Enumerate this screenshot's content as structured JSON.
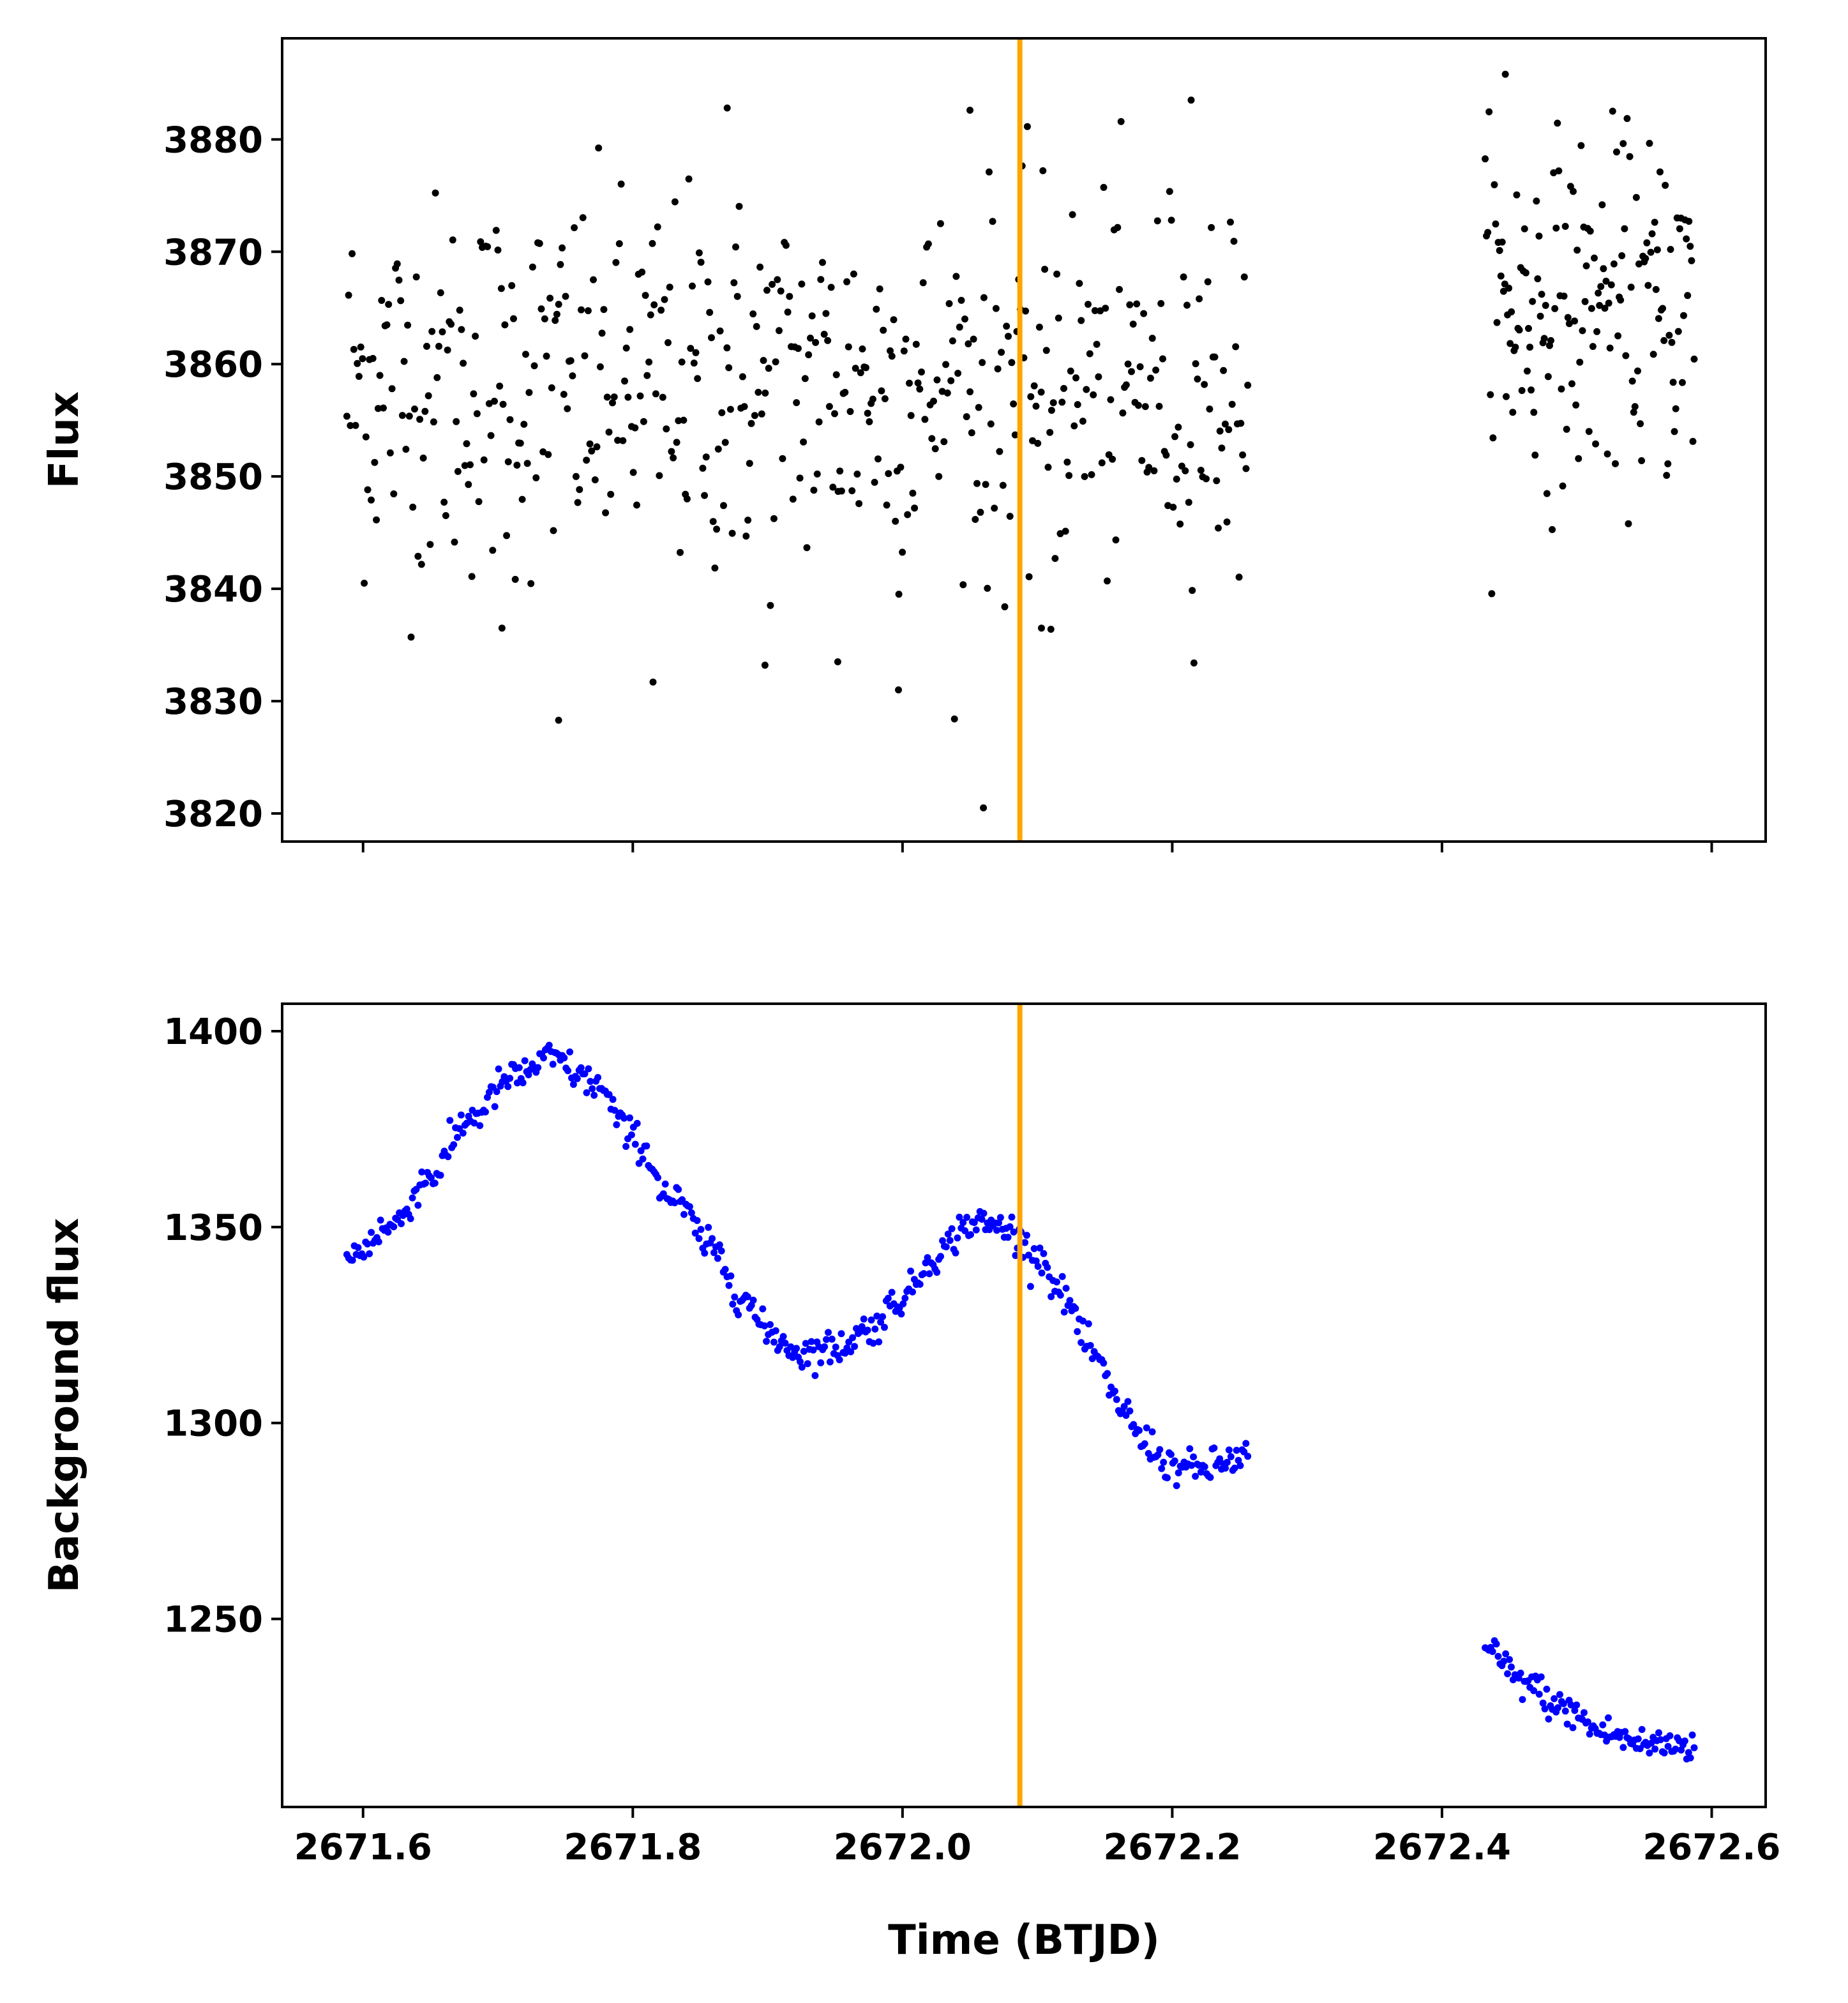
{
  "chart_data": [
    {
      "type": "scatter",
      "ylabel": "Flux",
      "xlabel": "",
      "xlim": [
        2671.54,
        2672.64
      ],
      "ylim": [
        3817.5,
        3889
      ],
      "x_ticks": [
        2671.6,
        2671.8,
        2672.0,
        2672.2,
        2672.4,
        2672.6
      ],
      "x_tick_labels_visible": false,
      "y_ticks": [
        3820,
        3830,
        3840,
        3850,
        3860,
        3870,
        3880
      ],
      "y_tick_labels": [
        "3820",
        "3830",
        "3840",
        "3850",
        "3860",
        "3870",
        "3880"
      ],
      "marker_color": "#000000",
      "vline": {
        "x": 2672.087,
        "color": "#ffa500"
      },
      "segments": [
        {
          "x_start": 2671.588,
          "x_end": 2672.256,
          "count": 520,
          "mean": 3858,
          "std": 8.5
        },
        {
          "x_start": 2672.432,
          "x_end": 2672.587,
          "count": 160,
          "mean": 3865,
          "std": 7.5
        }
      ],
      "notable_points": [
        {
          "x": 2672.06,
          "y": 3820.5
        },
        {
          "x": 2671.745,
          "y": 3828.3
        },
        {
          "x": 2672.447,
          "y": 3885.8
        },
        {
          "x": 2672.214,
          "y": 3883.5
        },
        {
          "x": 2671.87,
          "y": 3882.8
        },
        {
          "x": 2672.05,
          "y": 3882.6
        },
        {
          "x": 2671.815,
          "y": 3831.7
        },
        {
          "x": 2671.997,
          "y": 3831.0
        },
        {
          "x": 2671.898,
          "y": 3833.2
        },
        {
          "x": 2671.952,
          "y": 3833.5
        },
        {
          "x": 2671.703,
          "y": 3836.5
        },
        {
          "x": 2672.103,
          "y": 3836.5
        },
        {
          "x": 2672.11,
          "y": 3836.4
        }
      ],
      "grid": false
    },
    {
      "type": "scatter",
      "ylabel": "Background flux",
      "xlabel": "Time (BTJD)",
      "xlim": [
        2671.54,
        2672.64
      ],
      "ylim": [
        1202,
        1407
      ],
      "x_ticks": [
        2671.6,
        2671.8,
        2672.0,
        2672.2,
        2672.4,
        2672.6
      ],
      "x_tick_labels": [
        "2671.6",
        "2671.8",
        "2672.0",
        "2672.2",
        "2672.4",
        "2672.6"
      ],
      "y_ticks": [
        1250,
        1300,
        1350,
        1400
      ],
      "y_tick_labels": [
        "1250",
        "1300",
        "1350",
        "1400"
      ],
      "marker_color": "#0000ff",
      "vline": {
        "x": 2672.087,
        "color": "#ffa500"
      },
      "curve": [
        {
          "x": 2671.588,
          "y": 1342
        },
        {
          "x": 2671.62,
          "y": 1350
        },
        {
          "x": 2671.65,
          "y": 1363
        },
        {
          "x": 2671.68,
          "y": 1378
        },
        {
          "x": 2671.71,
          "y": 1388
        },
        {
          "x": 2671.74,
          "y": 1393
        },
        {
          "x": 2671.77,
          "y": 1387
        },
        {
          "x": 2671.8,
          "y": 1373
        },
        {
          "x": 2671.83,
          "y": 1357
        },
        {
          "x": 2671.86,
          "y": 1344
        },
        {
          "x": 2671.88,
          "y": 1333
        },
        {
          "x": 2671.9,
          "y": 1323
        },
        {
          "x": 2671.925,
          "y": 1318
        },
        {
          "x": 2671.95,
          "y": 1319
        },
        {
          "x": 2671.975,
          "y": 1324
        },
        {
          "x": 2672.0,
          "y": 1332
        },
        {
          "x": 2672.025,
          "y": 1343
        },
        {
          "x": 2672.05,
          "y": 1351
        },
        {
          "x": 2672.075,
          "y": 1350
        },
        {
          "x": 2672.1,
          "y": 1343
        },
        {
          "x": 2672.12,
          "y": 1332
        },
        {
          "x": 2672.14,
          "y": 1318
        },
        {
          "x": 2672.16,
          "y": 1305
        },
        {
          "x": 2672.18,
          "y": 1295
        },
        {
          "x": 2672.2,
          "y": 1289
        },
        {
          "x": 2672.22,
          "y": 1288
        },
        {
          "x": 2672.24,
          "y": 1290
        },
        {
          "x": 2672.256,
          "y": 1292
        },
        {
          "x": 2672.432,
          "y": 1242
        },
        {
          "x": 2672.46,
          "y": 1234
        },
        {
          "x": 2672.49,
          "y": 1227
        },
        {
          "x": 2672.52,
          "y": 1221
        },
        {
          "x": 2672.55,
          "y": 1218
        },
        {
          "x": 2672.587,
          "y": 1218
        }
      ],
      "noise_std": 2.2,
      "grid": false
    }
  ]
}
